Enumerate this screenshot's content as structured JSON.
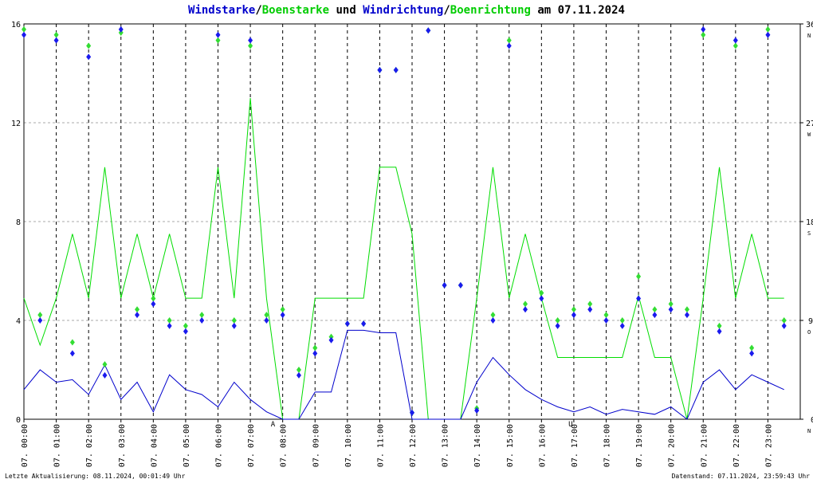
{
  "chart_data": {
    "type": "wind",
    "title_parts": [
      {
        "text": "Windstarke",
        "color": "#0000cc"
      },
      {
        "text": "/",
        "color": "#000000"
      },
      {
        "text": "Boenstarke",
        "color": "#00cc00"
      },
      {
        "text": " und ",
        "color": "#000000"
      },
      {
        "text": "Windrichtung",
        "color": "#0000cc"
      },
      {
        "text": "/",
        "color": "#000000"
      },
      {
        "text": "Boenrichtung",
        "color": "#00cc00"
      },
      {
        "text": " am 07.11.2024",
        "color": "#000000"
      }
    ],
    "xlim": [
      0,
      24
    ],
    "xticks": [
      {
        "value": 0,
        "label": "07. 00:00"
      },
      {
        "value": 1,
        "label": "07. 01:00"
      },
      {
        "value": 2,
        "label": "07. 02:00"
      },
      {
        "value": 3,
        "label": "07. 03:00"
      },
      {
        "value": 4,
        "label": "07. 04:00"
      },
      {
        "value": 5,
        "label": "07. 05:00"
      },
      {
        "value": 6,
        "label": "07. 06:00"
      },
      {
        "value": 7,
        "label": "07. 07:00"
      },
      {
        "value": 8,
        "label": "07. 08:00"
      },
      {
        "value": 9,
        "label": "07. 09:00"
      },
      {
        "value": 10,
        "label": "07. 10:00"
      },
      {
        "value": 11,
        "label": "07. 11:00"
      },
      {
        "value": 12,
        "label": "07. 12:00"
      },
      {
        "value": 13,
        "label": "07. 13:00"
      },
      {
        "value": 14,
        "label": "07. 14:00"
      },
      {
        "value": 15,
        "label": "07. 15:00"
      },
      {
        "value": 16,
        "label": "07. 16:00"
      },
      {
        "value": 17,
        "label": "07. 17:00"
      },
      {
        "value": 18,
        "label": "07. 18:00"
      },
      {
        "value": 19,
        "label": "07. 19:00"
      },
      {
        "value": 20,
        "label": "07. 20:00"
      },
      {
        "value": 21,
        "label": "07. 21:00"
      },
      {
        "value": 22,
        "label": "07. 22:00"
      },
      {
        "value": 23,
        "label": "07. 23:00"
      }
    ],
    "ylim": [
      0,
      16
    ],
    "yticks": [
      0,
      4,
      8,
      12,
      16
    ],
    "y2lim": [
      0,
      360
    ],
    "y2ticks": [
      0,
      90,
      180,
      270,
      360
    ],
    "y2tick_directions": [
      "N",
      "O",
      "S",
      "W",
      "N"
    ],
    "grid": true,
    "x": [
      0,
      0.5,
      1,
      1.5,
      2,
      2.5,
      3,
      3.5,
      4,
      4.5,
      5,
      5.5,
      6,
      6.5,
      7,
      7.5,
      8,
      8.5,
      9,
      9.5,
      10,
      10.5,
      11,
      11.5,
      12,
      12.5,
      13,
      13.5,
      14,
      14.5,
      15,
      15.5,
      16,
      16.5,
      17,
      17.5,
      18,
      18.5,
      19,
      19.5,
      20,
      20.5,
      21,
      21.5,
      22,
      22.5,
      23,
      23.5
    ],
    "series": [
      {
        "name": "Boenstarke",
        "color": "#00dd00",
        "style": "line",
        "values": [
          4.9,
          3.0,
          4.9,
          7.5,
          4.9,
          10.2,
          4.9,
          7.5,
          4.9,
          7.5,
          4.9,
          4.9,
          10.2,
          4.9,
          13.0,
          4.9,
          0,
          0,
          4.9,
          4.9,
          4.9,
          4.9,
          10.2,
          10.2,
          7.5,
          0,
          0,
          0,
          4.9,
          10.2,
          4.9,
          7.5,
          4.9,
          2.5,
          2.5,
          2.5,
          2.5,
          2.5,
          5.0,
          2.5,
          2.5,
          0,
          4.9,
          10.2,
          4.9,
          7.5,
          4.9,
          4.9
        ]
      },
      {
        "name": "Windstarke",
        "color": "#0000cc",
        "style": "line",
        "values": [
          1.2,
          2.0,
          1.5,
          1.6,
          1.0,
          2.2,
          0.8,
          1.5,
          0.3,
          1.8,
          1.2,
          1.0,
          0.5,
          1.5,
          0.8,
          0.3,
          0,
          0,
          1.1,
          1.1,
          3.6,
          3.6,
          3.5,
          3.5,
          0,
          0,
          0,
          0,
          1.5,
          2.5,
          1.8,
          1.2,
          0.8,
          0.5,
          0.3,
          0.5,
          0.2,
          0.4,
          0.3,
          0.2,
          0.5,
          0,
          1.5,
          2.0,
          1.2,
          1.8,
          1.5,
          1.2
        ]
      },
      {
        "name": "Boenrichtung",
        "color": "#33dd33",
        "style": "points",
        "axis": "y2",
        "values": [
          355,
          95,
          350,
          70,
          340,
          50,
          352,
          100,
          110,
          90,
          85,
          95,
          345,
          90,
          340,
          95,
          100,
          45,
          65,
          75,
          87,
          87,
          318,
          318,
          6,
          354,
          122,
          122,
          10,
          95,
          345,
          105,
          115,
          90,
          100,
          105,
          95,
          90,
          130,
          100,
          105,
          100,
          350,
          85,
          340,
          65,
          355,
          90
        ]
      },
      {
        "name": "Windrichtung",
        "color": "#1a1aee",
        "style": "points",
        "axis": "y2",
        "values": [
          350,
          90,
          345,
          60,
          330,
          40,
          355,
          95,
          105,
          85,
          80,
          90,
          350,
          85,
          345,
          90,
          95,
          40,
          60,
          72,
          87,
          87,
          318,
          318,
          6,
          354,
          122,
          122,
          8,
          90,
          340,
          100,
          110,
          85,
          95,
          100,
          90,
          85,
          110,
          95,
          100,
          95,
          355,
          80,
          345,
          60,
          350,
          85
        ]
      }
    ],
    "annotations": [
      {
        "text": "A",
        "x": 7.7,
        "color": "#cc0000"
      },
      {
        "text": "U",
        "x": 16.9,
        "color": "#cc0000"
      }
    ],
    "footer_left": "Letzte Aktualisierung: 08.11.2024, 00:01:49 Uhr",
    "footer_right": "Datenstand: 07.11.2024, 23:59:43 Uhr"
  }
}
